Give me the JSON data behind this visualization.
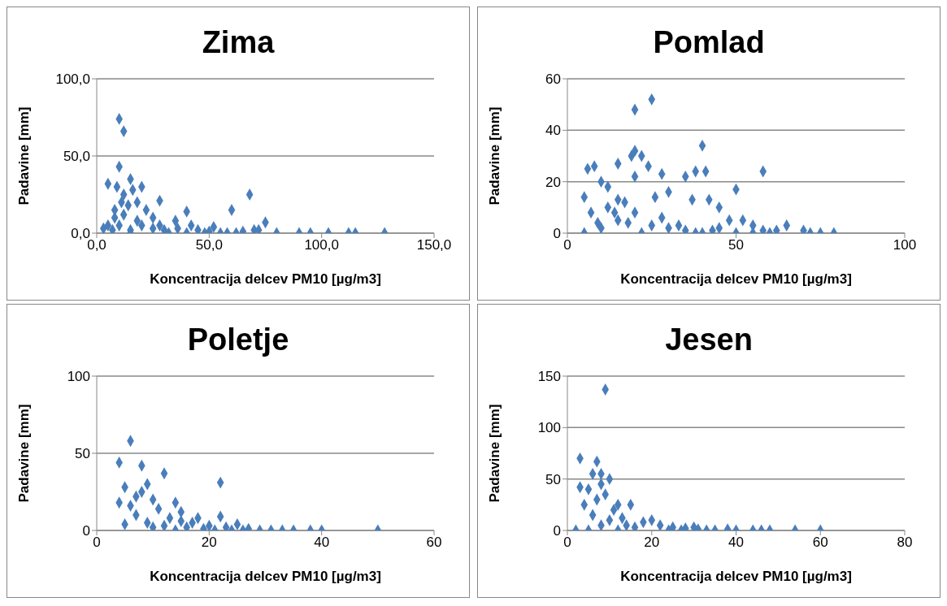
{
  "chart_data": [
    {
      "type": "scatter",
      "title": "Zima",
      "xlabel": "Koncentracija delcev PM10 [µg/m3]",
      "ylabel": "Padavine [mm]",
      "xlim": [
        0,
        150
      ],
      "xticks": [
        {
          "value": 0,
          "label": "0,0"
        },
        {
          "value": 50,
          "label": "50,0"
        },
        {
          "value": 100,
          "label": "100,0"
        },
        {
          "value": 150,
          "label": "150,0"
        }
      ],
      "ylim": [
        0,
        100
      ],
      "yticks": [
        {
          "value": 0,
          "label": "0,0"
        },
        {
          "value": 50,
          "label": "50,0"
        },
        {
          "value": 100,
          "label": "100,0"
        }
      ],
      "grid": "y",
      "marker": "diamond",
      "legend": false,
      "series": [
        {
          "color": "#4a7ebb",
          "x": [
            10,
            12,
            10,
            5,
            15,
            20,
            28,
            40,
            60,
            68,
            75,
            80,
            90,
            95,
            103,
            112,
            115,
            128,
            70,
            35,
            25,
            18,
            12,
            8,
            5,
            3,
            15,
            20,
            25,
            30,
            40,
            45,
            50,
            55,
            58,
            62,
            65,
            72,
            8,
            10,
            12,
            15,
            18,
            22,
            7,
            32,
            28,
            36,
            48,
            52,
            42,
            14,
            16,
            9,
            11
          ],
          "values": [
            74,
            66,
            43,
            32,
            35,
            30,
            21,
            14,
            15,
            25,
            7,
            0,
            0,
            0,
            0,
            0,
            0,
            0,
            2,
            8,
            10,
            20,
            25,
            15,
            5,
            3,
            2,
            5,
            3,
            2,
            0,
            2,
            1,
            0,
            0,
            0,
            1,
            2,
            10,
            5,
            12,
            0,
            8,
            15,
            2,
            0,
            5,
            3,
            0,
            4,
            5,
            18,
            28,
            30,
            20
          ]
        }
      ]
    },
    {
      "type": "scatter",
      "title": "Pomlad",
      "xlabel": "Koncentracija delcev PM10 [µg/m3]",
      "ylabel": "Padavine [mm]",
      "xlim": [
        0,
        100
      ],
      "xticks": [
        0,
        50,
        100
      ],
      "ylim": [
        0,
        60
      ],
      "yticks": [
        0,
        20,
        40,
        60
      ],
      "grid": "y",
      "marker": "diamond",
      "legend": false,
      "series": [
        {
          "color": "#4a7ebb",
          "x": [
            20,
            25,
            40,
            20,
            22,
            38,
            41,
            58,
            15,
            8,
            6,
            35,
            28,
            50,
            45,
            37,
            42,
            19,
            24,
            30,
            5,
            10,
            12,
            15,
            26,
            20,
            48,
            55,
            62,
            65,
            70,
            72,
            75,
            79,
            60,
            52,
            5,
            10,
            15,
            20,
            25,
            30,
            35,
            40,
            45,
            50,
            55,
            58,
            7,
            12,
            18,
            22,
            28,
            33,
            38,
            43,
            9,
            14,
            17
          ],
          "values": [
            48,
            52,
            34,
            32,
            30,
            24,
            24,
            24,
            27,
            26,
            25,
            22,
            23,
            17,
            10,
            13,
            13,
            30,
            26,
            16,
            14,
            20,
            18,
            13,
            14,
            22,
            5,
            3,
            1,
            3,
            1,
            0,
            0,
            0,
            0,
            5,
            0,
            2,
            5,
            8,
            3,
            2,
            1,
            0,
            2,
            0,
            0,
            1,
            8,
            10,
            4,
            0,
            6,
            3,
            0,
            1,
            4,
            8,
            12
          ]
        }
      ]
    },
    {
      "type": "scatter",
      "title": "Poletje",
      "xlabel": "Koncentracija delcev PM10 [µg/m3]",
      "ylabel": "Padavine [mm]",
      "xlim": [
        0,
        60
      ],
      "xticks": [
        0,
        20,
        40,
        60
      ],
      "ylim": [
        0,
        100
      ],
      "yticks": [
        0,
        50,
        100
      ],
      "grid": "y",
      "marker": "diamond",
      "legend": false,
      "series": [
        {
          "color": "#4a7ebb",
          "x": [
            6,
            4,
            8,
            12,
            22,
            5,
            8,
            10,
            14,
            6,
            15,
            18,
            22,
            7,
            9,
            5,
            12,
            16,
            20,
            25,
            27,
            31,
            33,
            35,
            38,
            40,
            50,
            29,
            24,
            19,
            11,
            13,
            17,
            21,
            23,
            26,
            4,
            7,
            9,
            10,
            14,
            15
          ],
          "values": [
            58,
            44,
            42,
            37,
            31,
            28,
            25,
            20,
            18,
            16,
            12,
            8,
            9,
            10,
            5,
            4,
            3,
            2,
            3,
            4,
            1,
            0,
            0,
            0,
            0,
            0,
            0,
            0,
            0,
            1,
            14,
            8,
            5,
            0,
            2,
            0,
            18,
            22,
            30,
            2,
            0,
            6
          ]
        }
      ]
    },
    {
      "type": "scatter",
      "title": "Jesen",
      "xlabel": "Koncentracija delcev PM10 [µg/m3]",
      "ylabel": "Padavine [mm]",
      "xlim": [
        0,
        80
      ],
      "xticks": [
        0,
        20,
        40,
        60,
        80
      ],
      "ylim": [
        0,
        150
      ],
      "yticks": [
        0,
        50,
        100,
        150
      ],
      "grid": "y",
      "marker": "diamond",
      "legend": false,
      "series": [
        {
          "color": "#4a7ebb",
          "x": [
            9,
            3,
            7,
            8,
            10,
            3,
            5,
            8,
            4,
            7,
            12,
            15,
            2,
            5,
            8,
            10,
            14,
            18,
            20,
            22,
            25,
            28,
            30,
            33,
            35,
            40,
            44,
            46,
            48,
            54,
            60,
            6,
            11,
            13,
            16,
            24,
            27,
            31,
            38,
            12,
            9,
            6
          ],
          "values": [
            137,
            70,
            67,
            55,
            50,
            42,
            40,
            45,
            25,
            30,
            25,
            25,
            0,
            0,
            5,
            10,
            5,
            8,
            10,
            5,
            3,
            2,
            3,
            0,
            0,
            0,
            0,
            0,
            0,
            0,
            0,
            15,
            20,
            12,
            3,
            0,
            0,
            1,
            1,
            0,
            35,
            55
          ]
        }
      ]
    }
  ]
}
